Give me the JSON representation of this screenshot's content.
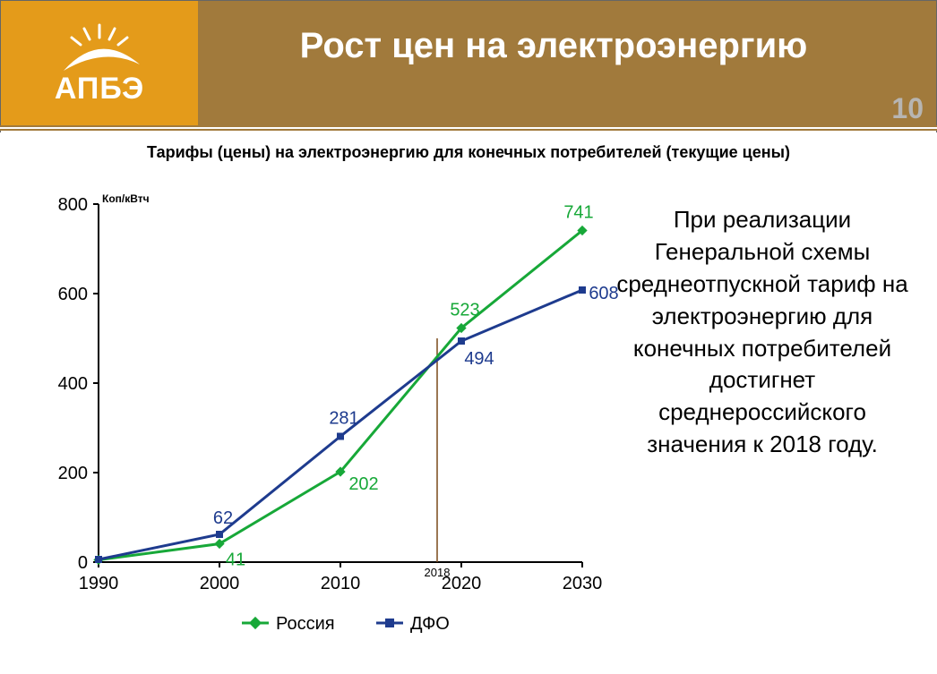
{
  "header": {
    "logo_text": "АПБЭ",
    "title": "Рост цен на электроэнергию",
    "page_number": "10",
    "bg_color": "#a17a3c",
    "logo_bg_color": "#e49b1a"
  },
  "chart": {
    "type": "line",
    "title": "Тарифы (цены) на электроэнергию для конечных потребителей (текущие цены)",
    "y_axis_label": "Коп/кВтч",
    "x_years": [
      1990,
      2000,
      2010,
      2020,
      2030
    ],
    "ylim": [
      0,
      800
    ],
    "ytick_step": 200,
    "yticks": [
      0,
      200,
      400,
      600,
      800
    ],
    "xlim": [
      1990,
      2030
    ],
    "marker_year": 2018,
    "marker_label": "2018",
    "background_color": "#ffffff",
    "axis_color": "#000000",
    "tick_font_size": 20,
    "axis_label_font_size": 12,
    "line_width": 3,
    "marker_size": 8,
    "series": [
      {
        "name": "Россия",
        "color": "#17a838",
        "marker": "diamond",
        "data_years": [
          1990,
          2000,
          2010,
          2020,
          2030
        ],
        "data_values": [
          5,
          41,
          202,
          523,
          741
        ],
        "labels_shown": [
          41,
          202,
          523,
          741
        ]
      },
      {
        "name": "ДФО",
        "color": "#1e3b8e",
        "marker": "square",
        "data_years": [
          1990,
          2000,
          2010,
          2020,
          2030
        ],
        "data_values": [
          6,
          62,
          281,
          494,
          608
        ],
        "labels_shown": [
          62,
          281,
          494,
          608
        ]
      }
    ],
    "legend": {
      "items": [
        "Россия",
        "ДФО"
      ],
      "position": "bottom"
    }
  },
  "side_text": "При реализации Генеральной схемы среднеотпускной тариф на электроэнергию для конечных потребителей достигнет среднероссийского значения к 2018 году."
}
